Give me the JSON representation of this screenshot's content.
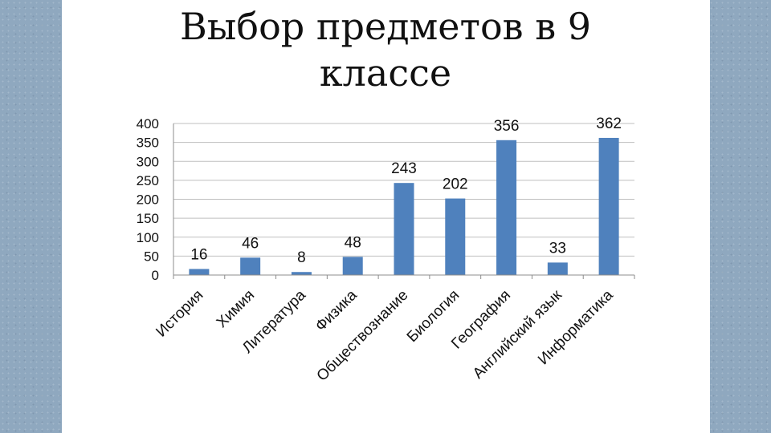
{
  "slide": {
    "title_line1": "Выбор предметов в 9",
    "title_line2": "классе"
  },
  "chart_data": {
    "type": "bar",
    "categories": [
      "История",
      "Химия",
      "Литература",
      "Физика",
      "Обществознание",
      "Биология",
      "География",
      "Английский язык",
      "Информатика"
    ],
    "values": [
      16,
      46,
      8,
      48,
      243,
      202,
      356,
      33,
      362
    ],
    "ylim": [
      0,
      400
    ],
    "yticks": [
      0,
      50,
      100,
      150,
      200,
      250,
      300,
      350,
      400
    ],
    "grid": true,
    "legend": "none",
    "bar_color": "#4f81bd",
    "grid_color": "#bfbfbf",
    "data_labels": true
  }
}
